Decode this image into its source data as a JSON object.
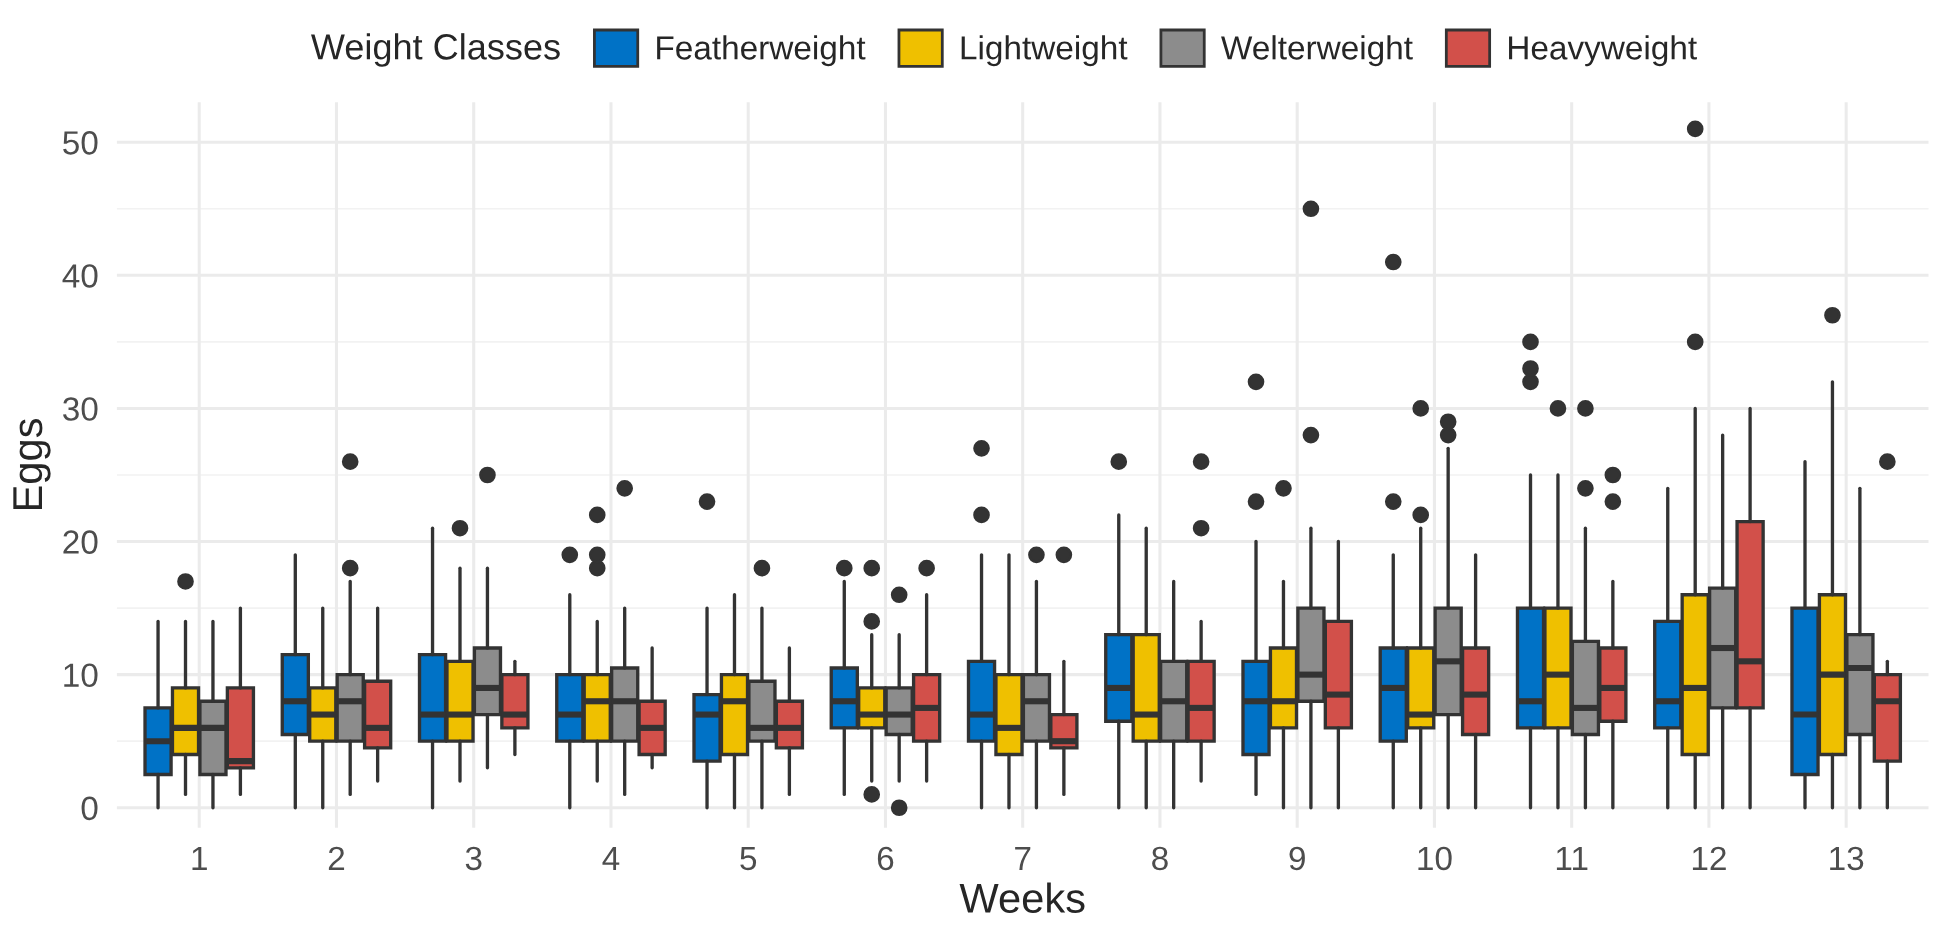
{
  "chart_data": {
    "type": "box",
    "xlabel": "Weeks",
    "ylabel": "Eggs",
    "legend_title": "Weight Classes",
    "legend": "top",
    "grid": true,
    "categories": [
      "1",
      "2",
      "3",
      "4",
      "5",
      "6",
      "7",
      "8",
      "9",
      "10",
      "11",
      "12",
      "13"
    ],
    "ylim": [
      -1.5,
      53
    ],
    "yticks": [
      0,
      10,
      20,
      30,
      40,
      50
    ],
    "series": [
      {
        "name": "Featherweight",
        "color": "#0072c6",
        "boxes": [
          {
            "low": 0,
            "q1": 2.5,
            "median": 5,
            "q3": 7.5,
            "high": 14
          },
          {
            "low": 0,
            "q1": 5.5,
            "median": 8,
            "q3": 11.5,
            "high": 19
          },
          {
            "low": 0,
            "q1": 5,
            "median": 7,
            "q3": 11.5,
            "high": 21
          },
          {
            "low": 0,
            "q1": 5,
            "median": 7,
            "q3": 10,
            "high": 16,
            "outliers": [
              19
            ]
          },
          {
            "low": 0,
            "q1": 3.5,
            "median": 7,
            "q3": 8.5,
            "high": 15,
            "outliers": [
              23
            ]
          },
          {
            "low": 1,
            "q1": 6,
            "median": 8,
            "q3": 10.5,
            "high": 17,
            "outliers": [
              18
            ]
          },
          {
            "low": 0,
            "q1": 5,
            "median": 7,
            "q3": 11,
            "high": 19,
            "outliers": [
              22,
              27
            ]
          },
          {
            "low": 0,
            "q1": 6.5,
            "median": 9,
            "q3": 13,
            "high": 22,
            "outliers": [
              26
            ]
          },
          {
            "low": 1,
            "q1": 4,
            "median": 8,
            "q3": 11,
            "high": 20,
            "outliers": [
              23,
              32
            ]
          },
          {
            "low": 0,
            "q1": 5,
            "median": 9,
            "q3": 12,
            "high": 19,
            "outliers": [
              23,
              41
            ]
          },
          {
            "low": 0,
            "q1": 6,
            "median": 8,
            "q3": 15,
            "high": 25,
            "outliers": [
              32,
              33,
              35
            ]
          },
          {
            "low": 0,
            "q1": 6,
            "median": 8,
            "q3": 14,
            "high": 24
          },
          {
            "low": 0,
            "q1": 2.5,
            "median": 7,
            "q3": 15,
            "high": 26
          }
        ]
      },
      {
        "name": "Lightweight",
        "color": "#efc000",
        "boxes": [
          {
            "low": 1,
            "q1": 4,
            "median": 6,
            "q3": 9,
            "high": 14,
            "outliers": [
              17
            ]
          },
          {
            "low": 0,
            "q1": 5,
            "median": 7,
            "q3": 9,
            "high": 15
          },
          {
            "low": 2,
            "q1": 5,
            "median": 7,
            "q3": 11,
            "high": 18,
            "outliers": [
              21
            ]
          },
          {
            "low": 2,
            "q1": 5,
            "median": 8,
            "q3": 10,
            "high": 14,
            "outliers": [
              18,
              19,
              22
            ]
          },
          {
            "low": 0,
            "q1": 4,
            "median": 8,
            "q3": 10,
            "high": 16
          },
          {
            "low": 2,
            "q1": 6,
            "median": 7,
            "q3": 9,
            "high": 13,
            "outliers": [
              1,
              14,
              18
            ]
          },
          {
            "low": 0,
            "q1": 4,
            "median": 6,
            "q3": 10,
            "high": 19
          },
          {
            "low": 0,
            "q1": 5,
            "median": 7,
            "q3": 13,
            "high": 21
          },
          {
            "low": 0,
            "q1": 6,
            "median": 8,
            "q3": 12,
            "high": 17,
            "outliers": [
              24
            ]
          },
          {
            "low": 0,
            "q1": 6,
            "median": 7,
            "q3": 12,
            "high": 21,
            "outliers": [
              22,
              30
            ]
          },
          {
            "low": 0,
            "q1": 6,
            "median": 10,
            "q3": 15,
            "high": 25,
            "outliers": [
              30
            ]
          },
          {
            "low": 0,
            "q1": 4,
            "median": 9,
            "q3": 16,
            "high": 30,
            "outliers": [
              35,
              51
            ]
          },
          {
            "low": 0,
            "q1": 4,
            "median": 10,
            "q3": 16,
            "high": 32,
            "outliers": [
              37
            ]
          }
        ]
      },
      {
        "name": "Welterweight",
        "color": "#8c8c8c",
        "boxes": [
          {
            "low": 0,
            "q1": 2.5,
            "median": 6,
            "q3": 8,
            "high": 14
          },
          {
            "low": 1,
            "q1": 5,
            "median": 8,
            "q3": 10,
            "high": 17,
            "outliers": [
              18,
              26
            ]
          },
          {
            "low": 3,
            "q1": 7,
            "median": 9,
            "q3": 12,
            "high": 18,
            "outliers": [
              25
            ]
          },
          {
            "low": 1,
            "q1": 5,
            "median": 8,
            "q3": 10.5,
            "high": 15,
            "outliers": [
              24
            ]
          },
          {
            "low": 0,
            "q1": 5,
            "median": 6,
            "q3": 9.5,
            "high": 15,
            "outliers": [
              18
            ]
          },
          {
            "low": 2,
            "q1": 5.5,
            "median": 7,
            "q3": 9,
            "high": 13,
            "outliers": [
              0,
              16
            ]
          },
          {
            "low": 0,
            "q1": 5,
            "median": 8,
            "q3": 10,
            "high": 17,
            "outliers": [
              19
            ]
          },
          {
            "low": 0,
            "q1": 5,
            "median": 8,
            "q3": 11,
            "high": 17
          },
          {
            "low": 0,
            "q1": 8,
            "median": 10,
            "q3": 15,
            "high": 21,
            "outliers": [
              28,
              45
            ]
          },
          {
            "low": 0,
            "q1": 7,
            "median": 11,
            "q3": 15,
            "high": 27,
            "outliers": [
              28,
              29
            ]
          },
          {
            "low": 0,
            "q1": 5.5,
            "median": 7.5,
            "q3": 12.5,
            "high": 21,
            "outliers": [
              24,
              30
            ]
          },
          {
            "low": 0,
            "q1": 7.5,
            "median": 12,
            "q3": 16.5,
            "high": 28
          },
          {
            "low": 0,
            "q1": 5.5,
            "median": 10.5,
            "q3": 13,
            "high": 24
          }
        ]
      },
      {
        "name": "Heavyweight",
        "color": "#d2504a",
        "boxes": [
          {
            "low": 1,
            "q1": 3,
            "median": 3.5,
            "q3": 9,
            "high": 15
          },
          {
            "low": 2,
            "q1": 4.5,
            "median": 6,
            "q3": 9.5,
            "high": 15
          },
          {
            "low": 4,
            "q1": 6,
            "median": 7,
            "q3": 10,
            "high": 11
          },
          {
            "low": 3,
            "q1": 4,
            "median": 6,
            "q3": 8,
            "high": 12
          },
          {
            "low": 1,
            "q1": 4.5,
            "median": 6,
            "q3": 8,
            "high": 12
          },
          {
            "low": 2,
            "q1": 5,
            "median": 7.5,
            "q3": 10,
            "high": 16,
            "outliers": [
              18
            ]
          },
          {
            "low": 1,
            "q1": 4.5,
            "median": 5,
            "q3": 7,
            "high": 11,
            "outliers": [
              19
            ]
          },
          {
            "low": 2,
            "q1": 5,
            "median": 7.5,
            "q3": 11,
            "high": 14,
            "outliers": [
              21,
              26
            ]
          },
          {
            "low": 0,
            "q1": 6,
            "median": 8.5,
            "q3": 14,
            "high": 20
          },
          {
            "low": 0,
            "q1": 5.5,
            "median": 8.5,
            "q3": 12,
            "high": 19
          },
          {
            "low": 0,
            "q1": 6.5,
            "median": 9,
            "q3": 12,
            "high": 17,
            "outliers": [
              23,
              25
            ]
          },
          {
            "low": 0,
            "q1": 7.5,
            "median": 11,
            "q3": 21.5,
            "high": 30
          },
          {
            "low": 0,
            "q1": 3.5,
            "median": 8,
            "q3": 10,
            "high": 11,
            "outliers": [
              26
            ]
          }
        ]
      }
    ]
  }
}
